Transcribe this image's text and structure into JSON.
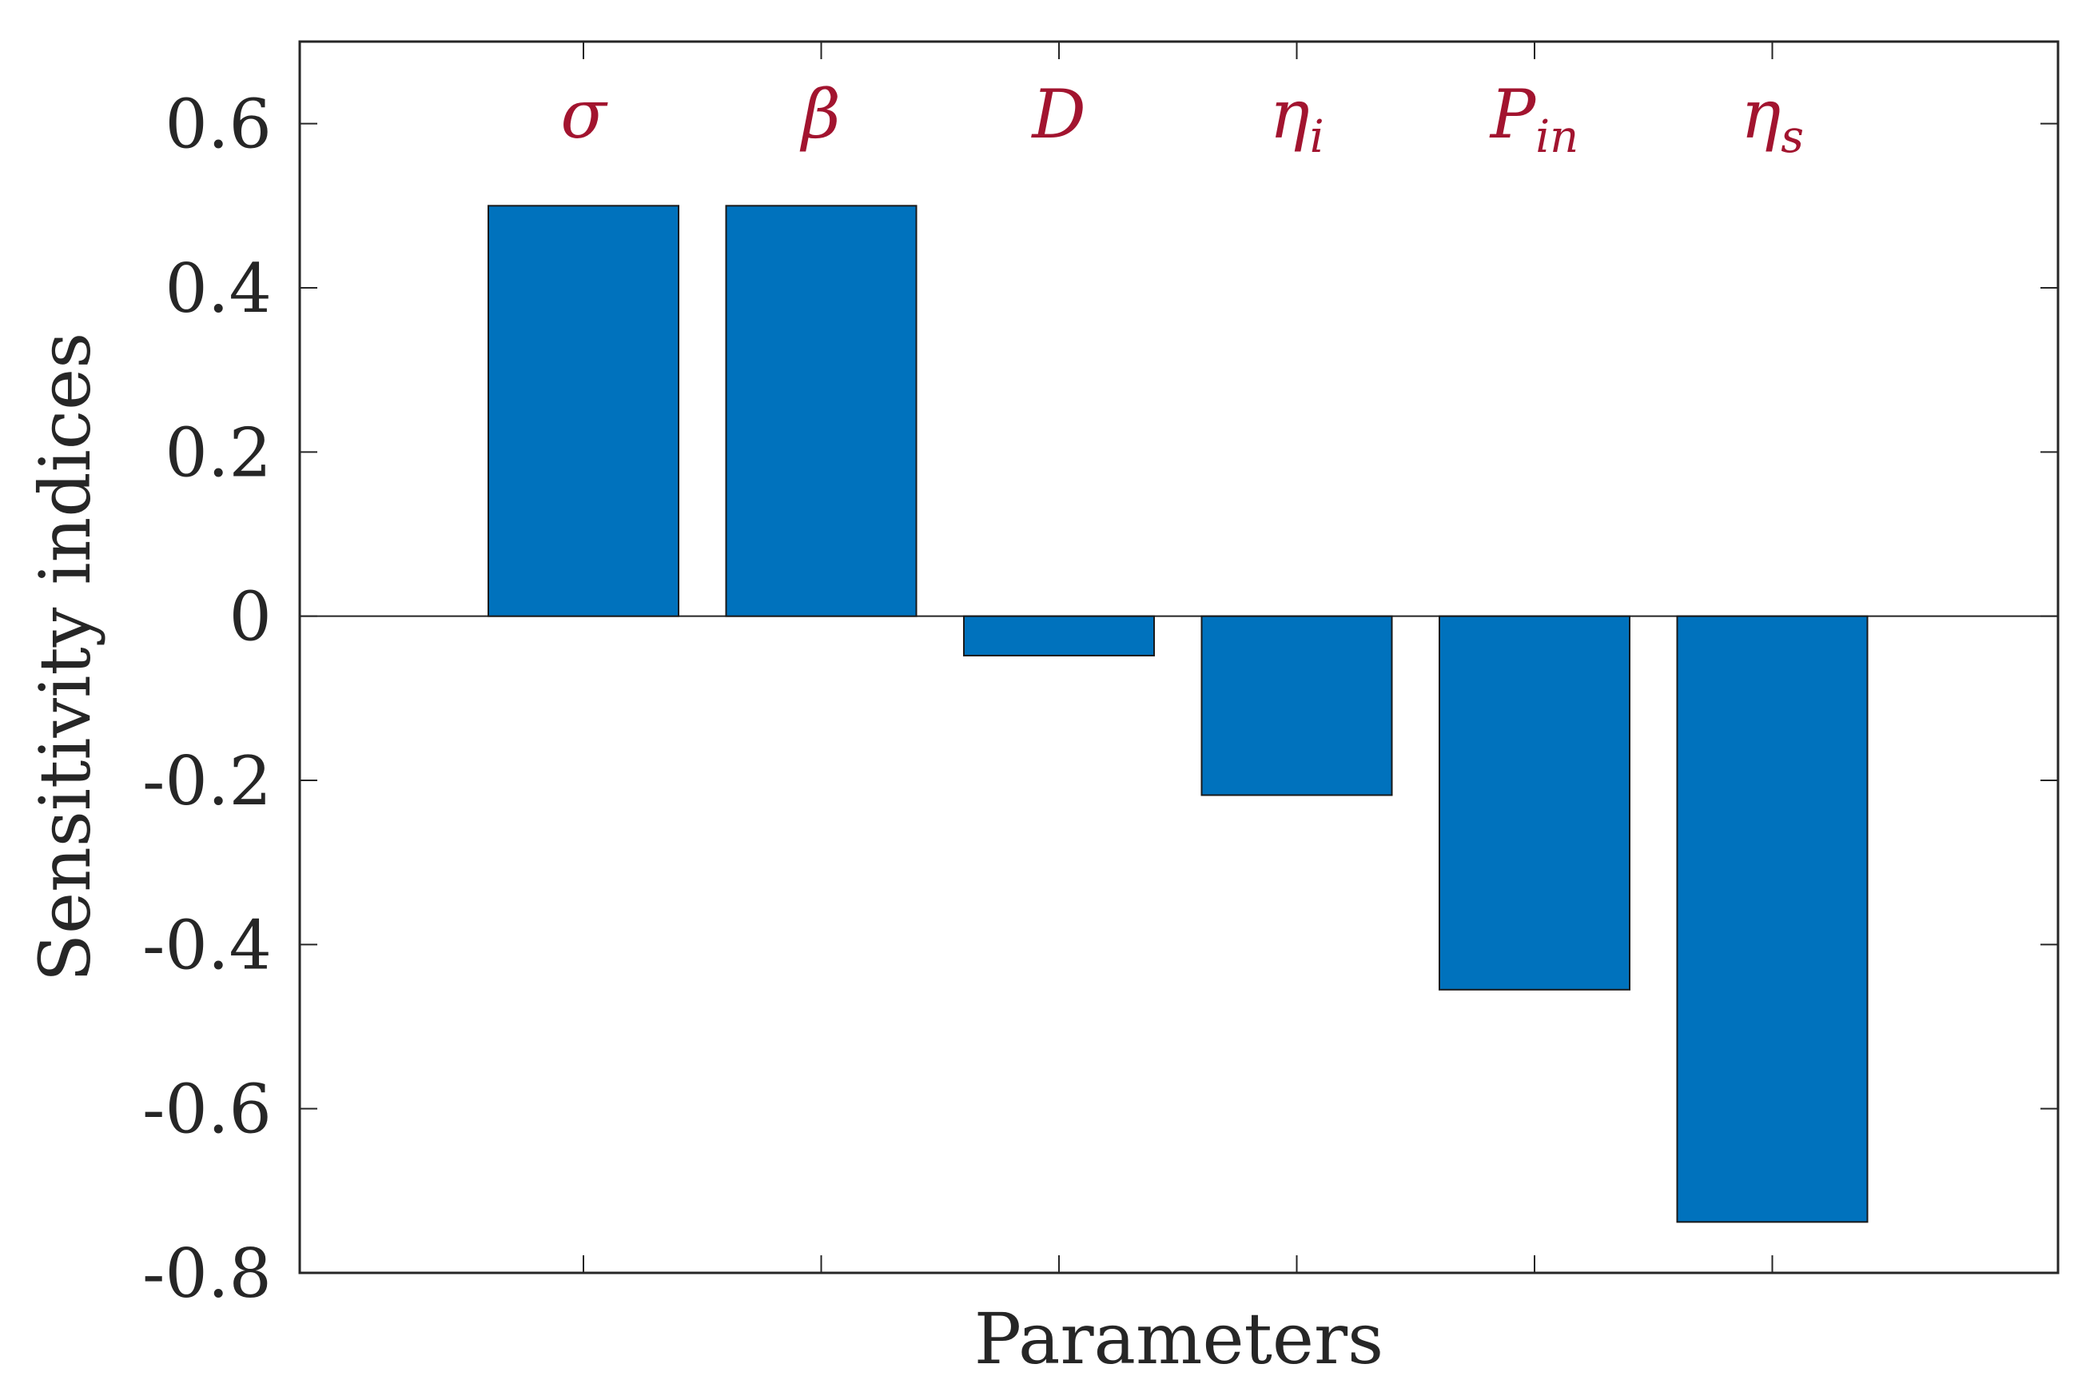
{
  "chart_data": {
    "type": "bar",
    "categories": [
      {
        "main": "σ",
        "sub": ""
      },
      {
        "main": "β",
        "sub": ""
      },
      {
        "main": "D",
        "sub": ""
      },
      {
        "main": "η",
        "sub": "i"
      },
      {
        "main": "P",
        "sub": "in"
      },
      {
        "main": "η",
        "sub": "s"
      }
    ],
    "values": [
      0.5,
      0.5,
      -0.048,
      -0.218,
      -0.455,
      -0.738
    ],
    "xlabel": "Parameters",
    "ylabel": "Sensitivity indices",
    "ylim": [
      -0.8,
      0.7
    ],
    "yticks": [
      0.6,
      0.4,
      0.2,
      0,
      -0.2,
      -0.4,
      -0.6,
      -0.8
    ],
    "ytick_labels": [
      "0.6",
      "0.4",
      "0.2",
      "0",
      "-0.2",
      "-0.4",
      "-0.6",
      "-0.8"
    ],
    "grid": false,
    "legend": "none",
    "bar_color": "#0072BD",
    "category_label_color": "#A2142F"
  }
}
